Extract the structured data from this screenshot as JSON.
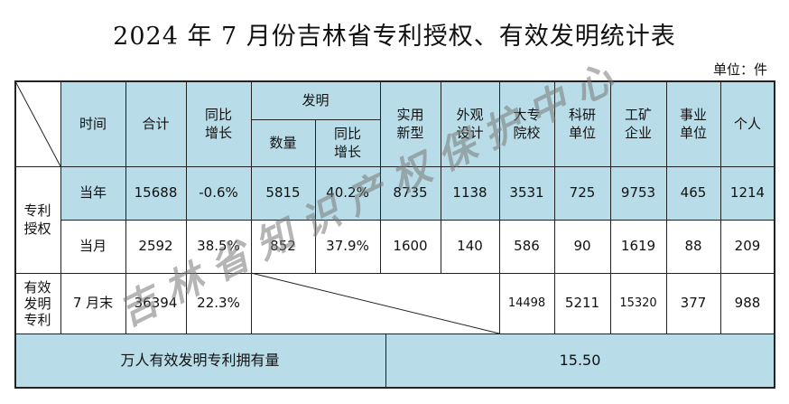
{
  "title": "2024 年 7 月份吉林省专利授权、有效发明统计表",
  "unit": "单位：件",
  "header": {
    "time": "时间",
    "total": "合计",
    "yoy": "同比\n增长",
    "invention": "发明",
    "invention_count": "数量",
    "invention_yoy": "同比\n增长",
    "utility": "实用\n新型",
    "design": "外观\n设计",
    "universities": "大专\n院校",
    "research": "科研\n单位",
    "industrial": "工矿\n企业",
    "public": "事业\n单位",
    "individual": "个人"
  },
  "grant": {
    "label": "专利\n授权",
    "year": {
      "time": "当年",
      "total": "15688",
      "yoy": "-0.6%",
      "inv_count": "5815",
      "inv_yoy": "40.2%",
      "utility": "8735",
      "design": "1138",
      "universities": "3531",
      "research": "725",
      "industrial": "9753",
      "public": "465",
      "individual": "1214"
    },
    "month": {
      "time": "当月",
      "total": "2592",
      "yoy": "38.5%",
      "inv_count": "852",
      "inv_yoy": "37.9%",
      "utility": "1600",
      "design": "140",
      "universities": "586",
      "research": "90",
      "industrial": "1619",
      "public": "88",
      "individual": "209"
    }
  },
  "valid": {
    "label": "有效\n发明\n专利",
    "time": "7 月末",
    "total": "36394",
    "yoy": "22.3%",
    "universities": "14498",
    "research": "5211",
    "industrial": "15320",
    "public": "377",
    "individual": "988"
  },
  "per_capita": {
    "label": "万人有效发明专利拥有量",
    "value": "15.50"
  },
  "watermark": "吉林省知识产权保护中心",
  "colors": {
    "header_fill": "#b9dde8",
    "border": "#222222"
  }
}
